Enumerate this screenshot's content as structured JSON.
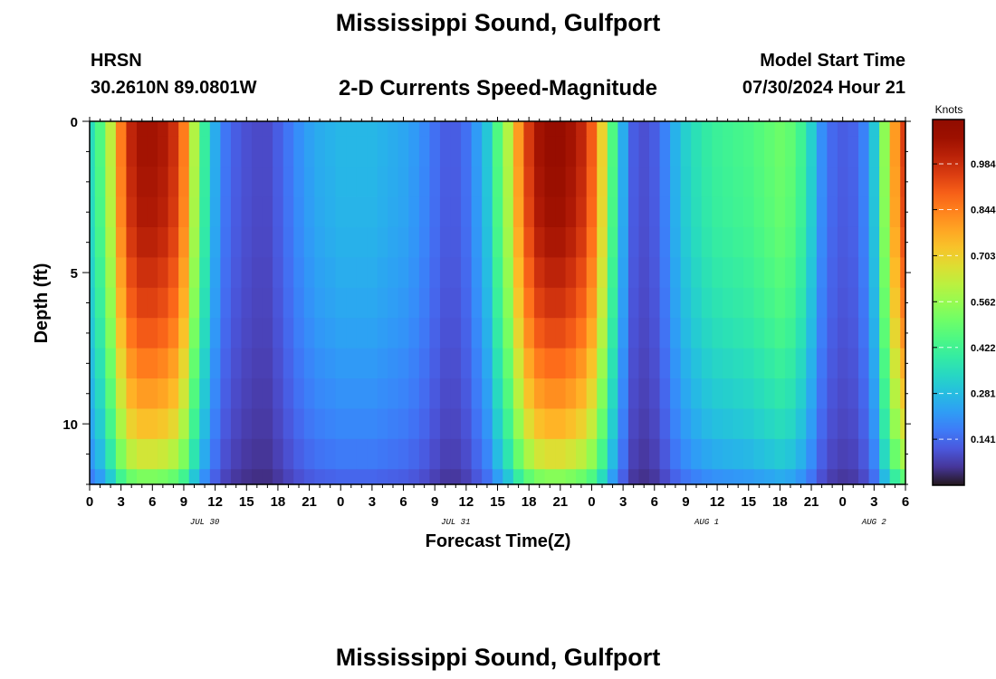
{
  "header": {
    "title": "Mississippi Sound, Gulfport",
    "station_id": "HRSN",
    "station_coords": "30.2610N  89.0801W",
    "subtitle": "2-D Currents Speed-Magnitude",
    "model_start_label": "Model Start Time",
    "model_start_value": "07/30/2024 Hour 21"
  },
  "footer": {
    "title": "Mississippi Sound, Gulfport"
  },
  "chart_data": {
    "type": "heatmap",
    "title": "2-D Currents Speed-Magnitude",
    "xlabel": "Forecast Time(Z)",
    "ylabel": "Depth (ft)",
    "x_tick_labels": [
      "0",
      "3",
      "6",
      "9",
      "12",
      "15",
      "18",
      "21",
      "0",
      "3",
      "6",
      "9",
      "12",
      "15",
      "18",
      "21",
      "0",
      "3",
      "6",
      "9",
      "12",
      "15",
      "18",
      "21",
      "0",
      "3",
      "6"
    ],
    "x_hours": [
      0,
      3,
      6,
      9,
      12,
      15,
      18,
      21,
      24,
      27,
      30,
      33,
      36,
      39,
      42,
      45,
      48,
      51,
      54,
      57,
      60,
      63,
      66,
      69,
      72,
      75,
      78
    ],
    "x_range_hours": [
      0,
      78
    ],
    "date_labels": [
      {
        "label": "JUL 30",
        "hour": 11
      },
      {
        "label": "JUL 31",
        "hour": 35
      },
      {
        "label": "AUG 1",
        "hour": 59
      },
      {
        "label": "AUG 2",
        "hour": 75
      }
    ],
    "y_tick_labels": [
      "0",
      "5",
      "10"
    ],
    "y_tick_values": [
      0,
      5,
      10
    ],
    "y_range_ft": [
      0,
      12
    ],
    "y_inverted": true,
    "colorbar": {
      "title": "Knots",
      "tick_labels": [
        "0.141",
        "0.281",
        "0.422",
        "0.562",
        "0.703",
        "0.844",
        "0.984"
      ],
      "tick_values": [
        0.141,
        0.281,
        0.422,
        0.562,
        0.703,
        0.844,
        0.984
      ],
      "range": [
        0.0,
        1.12
      ],
      "colormap": "turbo"
    },
    "time_step_hours": 1,
    "depths_ft": [
      0,
      1,
      2,
      3,
      4,
      5,
      6,
      7,
      8,
      9,
      10,
      11,
      12
    ],
    "speed_profile_knots": [
      0.35,
      0.45,
      0.62,
      0.85,
      1.0,
      1.05,
      1.05,
      1.03,
      0.98,
      0.85,
      0.6,
      0.4,
      0.25,
      0.16,
      0.12,
      0.1,
      0.09,
      0.09,
      0.12,
      0.16,
      0.2,
      0.23,
      0.25,
      0.26,
      0.27,
      0.27,
      0.27,
      0.27,
      0.26,
      0.25,
      0.24,
      0.22,
      0.19,
      0.15,
      0.12,
      0.12,
      0.15,
      0.22,
      0.3,
      0.45,
      0.6,
      0.8,
      0.96,
      1.05,
      1.08,
      1.08,
      1.05,
      1.0,
      0.9,
      0.7,
      0.45,
      0.25,
      0.12,
      0.1,
      0.12,
      0.18,
      0.26,
      0.32,
      0.36,
      0.39,
      0.41,
      0.42,
      0.43,
      0.44,
      0.46,
      0.48,
      0.5,
      0.48,
      0.42,
      0.32,
      0.2,
      0.14,
      0.12,
      0.13,
      0.18,
      0.3,
      0.55,
      0.8,
      0.95
    ],
    "depth_attenuation": [
      1.0,
      1.0,
      0.99,
      0.98,
      0.96,
      0.93,
      0.9,
      0.86,
      0.81,
      0.76,
      0.7,
      0.62,
      0.5
    ]
  }
}
